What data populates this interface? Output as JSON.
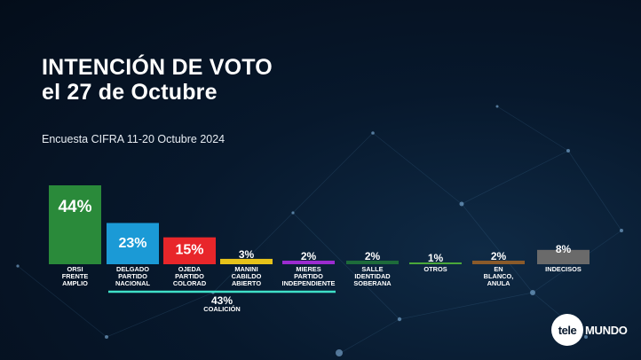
{
  "header": {
    "title_line1": "INTENCIÓN DE VOTO",
    "title_line2": "el 27 de Octubre",
    "subtitle": "Encuesta CIFRA 11-20 Octubre 2024"
  },
  "brand": {
    "logo_part1": "tele",
    "logo_part2": "MUNDO"
  },
  "chart_data": {
    "type": "bar",
    "unit": "%",
    "ylim": [
      0,
      44
    ],
    "categories": [
      [
        "ORSI",
        "FRENTE",
        "AMPLIO"
      ],
      [
        "DELGADO",
        "PARTIDO",
        "NACIONAL"
      ],
      [
        "OJEDA",
        "PARTIDO",
        "COLORAD"
      ],
      [
        "MANINI",
        "CABILDO",
        "ABIERTO"
      ],
      [
        "MIERES",
        "PARTIDO",
        "INDEPENDIENTE"
      ],
      [
        "SALLE",
        "IDENTIDAD",
        "SOBERANA"
      ],
      [
        "OTROS"
      ],
      [
        "EN",
        "BLANCO,",
        "ANULA"
      ],
      [
        "INDECISOS"
      ]
    ],
    "values": [
      44,
      23,
      15,
      3,
      2,
      2,
      1,
      2,
      8
    ],
    "labels": [
      "44%",
      "23%",
      "15%",
      "3%",
      "2%",
      "2%",
      "1%",
      "2%",
      "8%"
    ],
    "colors": [
      "#2a8a3a",
      "#1b9ad6",
      "#e8262a",
      "#e6c21a",
      "#9b2bd0",
      "#1d6b3a",
      "#4aa83a",
      "#8a5a2a",
      "#6a6a6a"
    ],
    "coalition": {
      "value_label": "43%",
      "label": "COALICIÓN",
      "color": "#3fe0c8"
    }
  }
}
